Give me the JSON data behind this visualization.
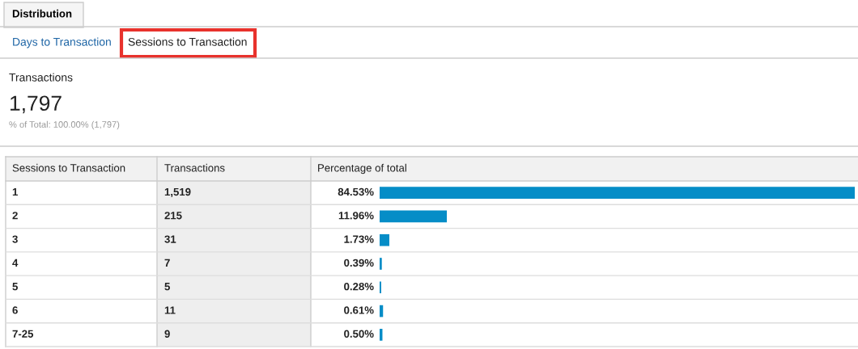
{
  "chart_data": {
    "type": "bar",
    "orientation": "horizontal",
    "xlabel": "Percentage of total",
    "categories": [
      "1",
      "2",
      "3",
      "4",
      "5",
      "6",
      "7-25"
    ],
    "values": [
      84.53,
      11.96,
      1.73,
      0.39,
      0.28,
      0.61,
      0.5
    ],
    "value_labels": [
      "84.53%",
      "11.96%",
      "1.73%",
      "0.39%",
      "0.28%",
      "0.61%",
      "0.50%"
    ],
    "color": "#058dc7",
    "annotations": [
      "Distribution",
      "Days to Transaction",
      "Sessions to Transaction",
      "Transactions",
      "1,797",
      "% of Total: 100.00% (1,797)",
      "Transactions",
      "Sessions to Transaction",
      "1,519",
      "215",
      "31",
      "7",
      "5",
      "11",
      "9"
    ]
  }
}
